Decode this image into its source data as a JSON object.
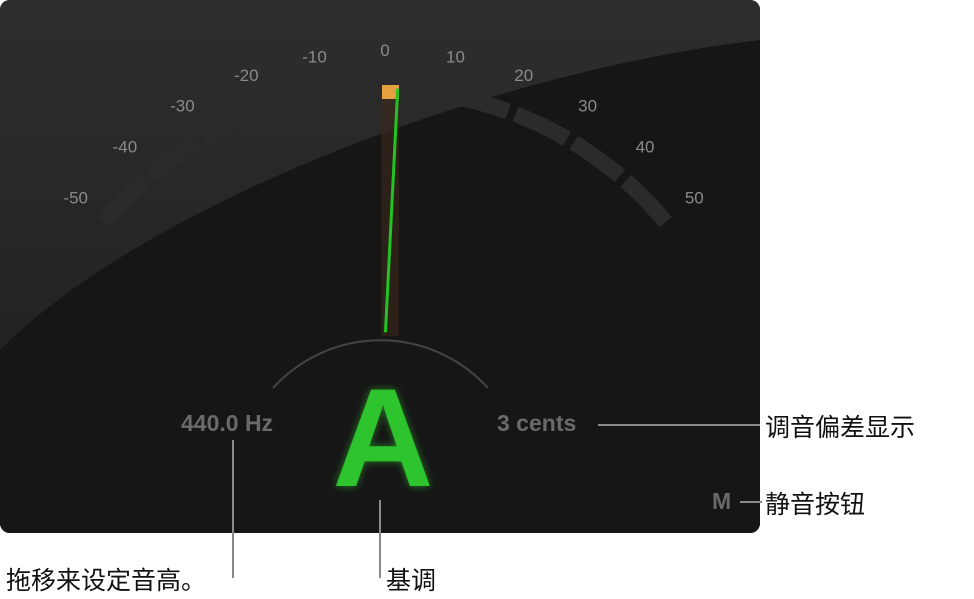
{
  "tuner": {
    "scale_labels": [
      "-50",
      "-40",
      "-30",
      "-20",
      "-10",
      "0",
      "10",
      "20",
      "30",
      "40",
      "50"
    ],
    "frequency": "440.0 Hz",
    "note": "A",
    "deviation": "3 cents",
    "deviation_value": 3,
    "mute_label": "M",
    "colors": {
      "needle": "#22c322",
      "note": "#2fc42f",
      "marker": "#e5a040"
    }
  },
  "callouts": {
    "deviation": "调音偏差显示",
    "mute": "静音按钮",
    "pitch": "拖移来设定音高。",
    "key": "基调"
  }
}
